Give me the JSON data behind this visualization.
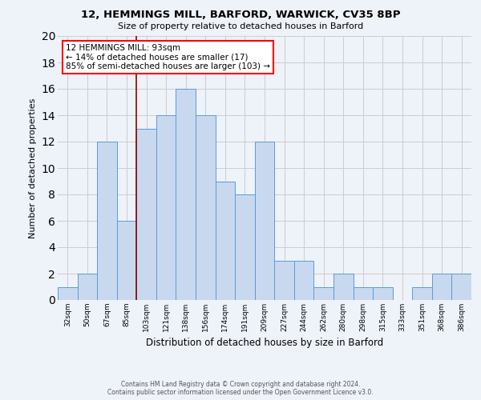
{
  "title": "12, HEMMINGS MILL, BARFORD, WARWICK, CV35 8BP",
  "subtitle": "Size of property relative to detached houses in Barford",
  "xlabel": "Distribution of detached houses by size in Barford",
  "ylabel": "Number of detached properties",
  "footer_line1": "Contains HM Land Registry data © Crown copyright and database right 2024.",
  "footer_line2": "Contains public sector information licensed under the Open Government Licence v3.0.",
  "bin_labels": [
    "32sqm",
    "50sqm",
    "67sqm",
    "85sqm",
    "103sqm",
    "121sqm",
    "138sqm",
    "156sqm",
    "174sqm",
    "191sqm",
    "209sqm",
    "227sqm",
    "244sqm",
    "262sqm",
    "280sqm",
    "298sqm",
    "315sqm",
    "333sqm",
    "351sqm",
    "368sqm",
    "386sqm"
  ],
  "bar_values": [
    1,
    2,
    12,
    6,
    13,
    14,
    16,
    14,
    9,
    8,
    12,
    3,
    3,
    1,
    2,
    1,
    1,
    0,
    1,
    2,
    2
  ],
  "bar_color": "#c8d9ef",
  "bar_edge_color": "#5b9bd5",
  "vline_color": "#8b0000",
  "annotation_text": "12 HEMMINGS MILL: 93sqm\n← 14% of detached houses are smaller (17)\n85% of semi-detached houses are larger (103) →",
  "annotation_box_color": "white",
  "annotation_box_edge_color": "red",
  "ylim": [
    0,
    20
  ],
  "yticks": [
    0,
    2,
    4,
    6,
    8,
    10,
    12,
    14,
    16,
    18,
    20
  ],
  "grid_color": "#cccccc",
  "background_color": "#eef2f9"
}
